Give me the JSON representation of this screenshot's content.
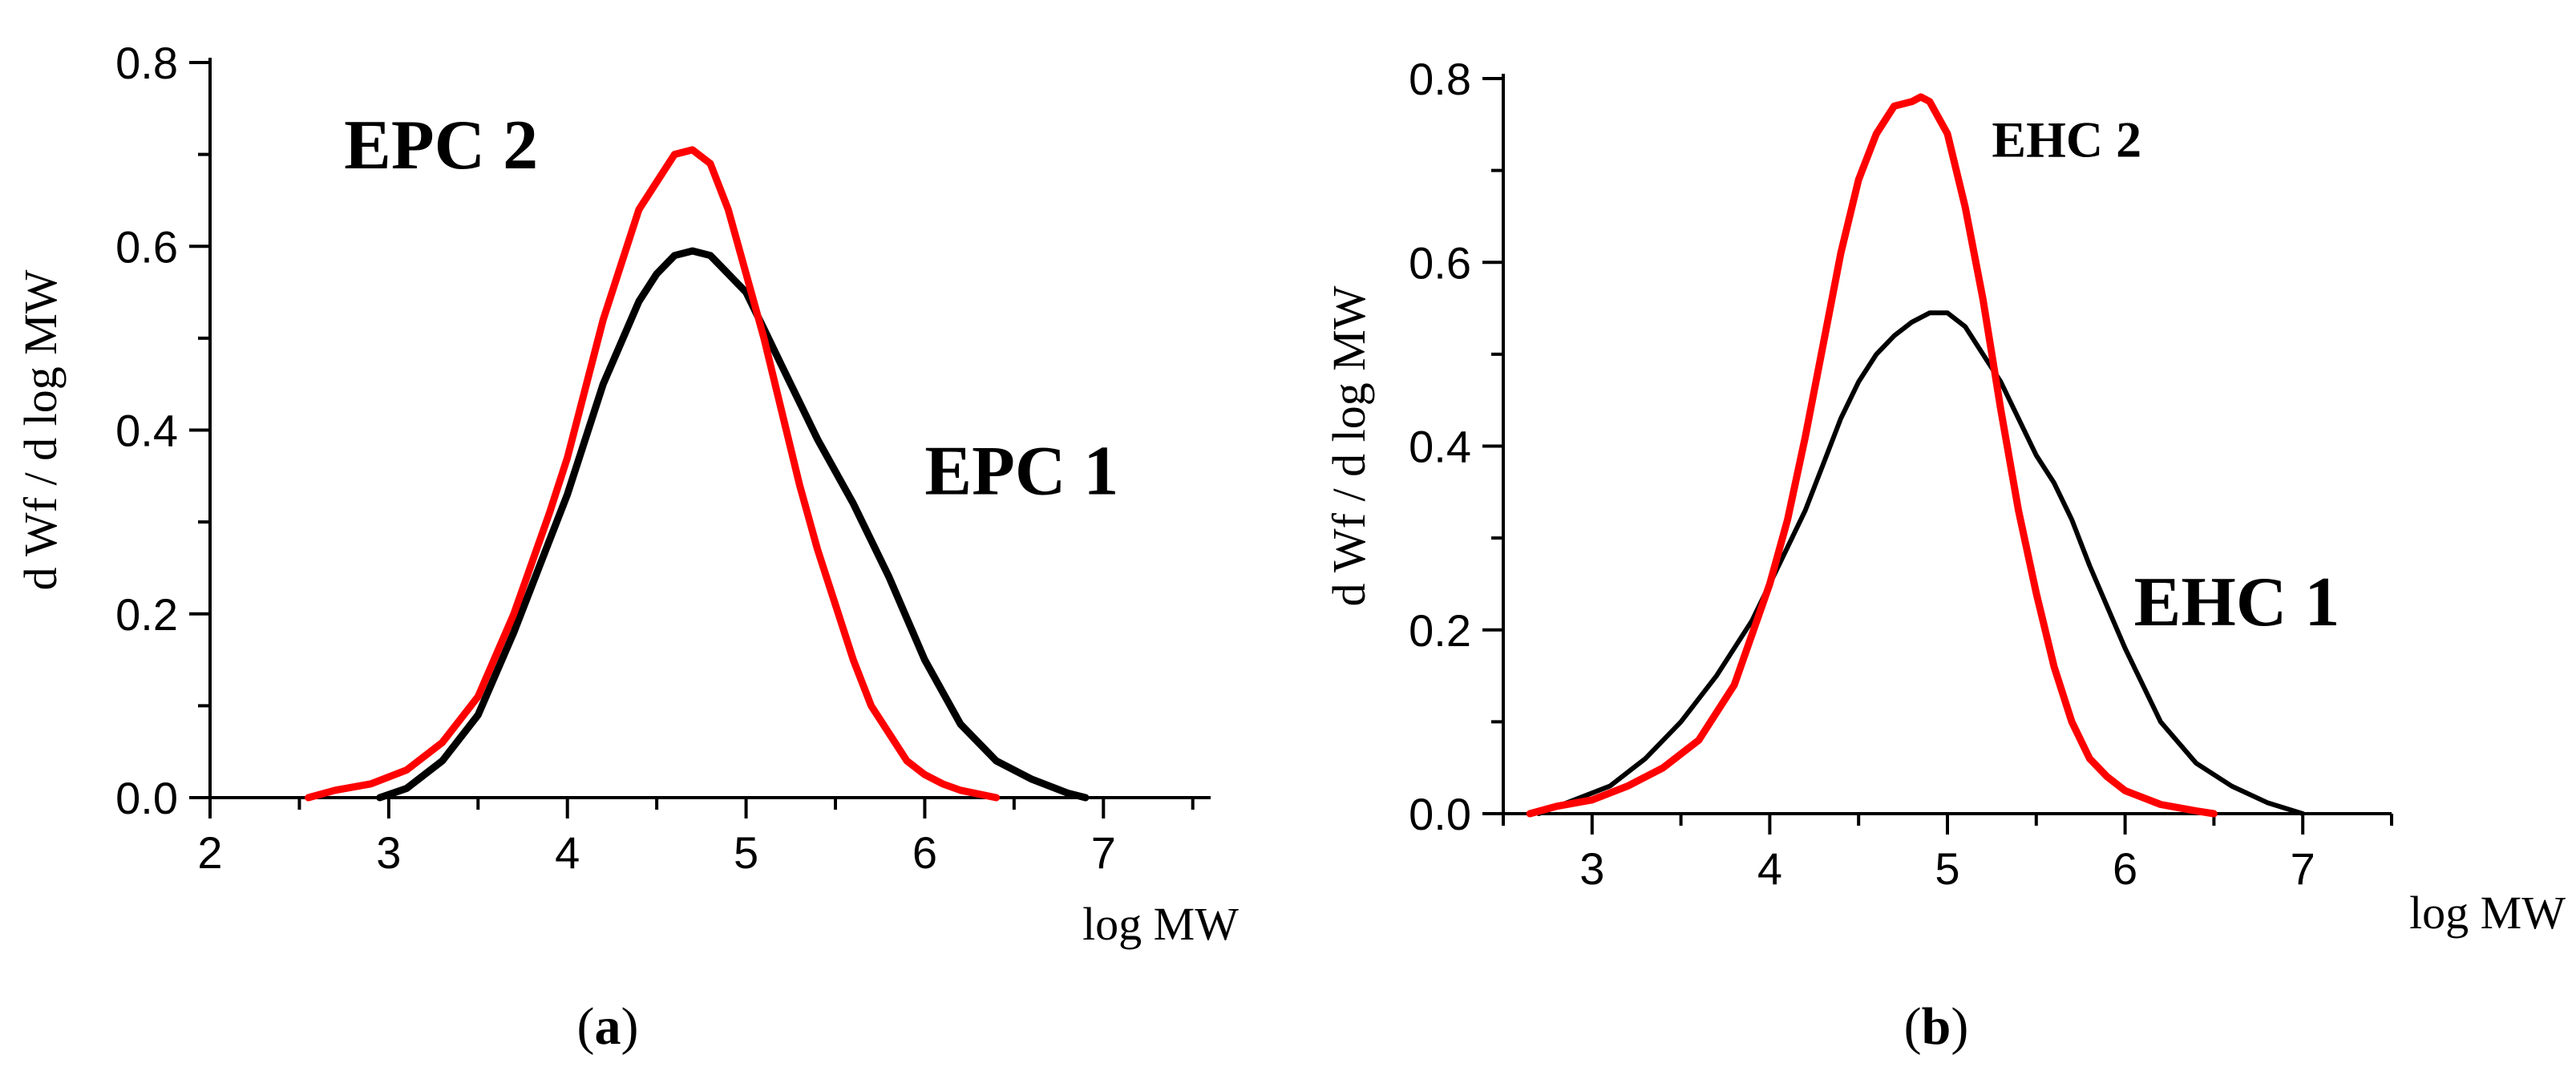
{
  "chart_data": [
    {
      "id": "a",
      "type": "line",
      "caption_open": "(",
      "caption_letter": "a",
      "caption_close": ")",
      "title": "",
      "xlabel": "log MW",
      "ylabel": "d Wf / d log MW",
      "xlim": [
        2,
        7.6
      ],
      "ylim": [
        0,
        0.8
      ],
      "xticks": [
        2,
        3,
        4,
        5,
        6,
        7
      ],
      "yticks": [
        0.0,
        0.2,
        0.4,
        0.6,
        0.8
      ],
      "grid": false,
      "series": [
        {
          "name": "EPC 1",
          "color": "#000000",
          "x": [
            2.95,
            3.1,
            3.3,
            3.5,
            3.7,
            3.9,
            4.0,
            4.2,
            4.4,
            4.5,
            4.6,
            4.7,
            4.8,
            4.9,
            5.0,
            5.1,
            5.2,
            5.3,
            5.4,
            5.6,
            5.8,
            6.0,
            6.2,
            6.4,
            6.6,
            6.8,
            6.9
          ],
          "y": [
            0.0,
            0.01,
            0.04,
            0.09,
            0.18,
            0.28,
            0.33,
            0.45,
            0.54,
            0.57,
            0.59,
            0.595,
            0.59,
            0.57,
            0.55,
            0.51,
            0.47,
            0.43,
            0.39,
            0.32,
            0.24,
            0.15,
            0.08,
            0.04,
            0.02,
            0.005,
            0.0
          ]
        },
        {
          "name": "EPC 2",
          "color": "#ff0000",
          "x": [
            2.55,
            2.7,
            2.9,
            3.1,
            3.3,
            3.5,
            3.7,
            3.9,
            4.0,
            4.2,
            4.4,
            4.5,
            4.6,
            4.7,
            4.8,
            4.9,
            5.0,
            5.1,
            5.2,
            5.3,
            5.4,
            5.5,
            5.6,
            5.7,
            5.8,
            5.9,
            6.0,
            6.1,
            6.2,
            6.4
          ],
          "y": [
            0.0,
            0.008,
            0.015,
            0.03,
            0.06,
            0.11,
            0.2,
            0.31,
            0.37,
            0.52,
            0.64,
            0.67,
            0.7,
            0.705,
            0.69,
            0.64,
            0.57,
            0.5,
            0.42,
            0.34,
            0.27,
            0.21,
            0.15,
            0.1,
            0.07,
            0.04,
            0.025,
            0.015,
            0.008,
            0.0
          ]
        }
      ],
      "annotations": [
        {
          "text": "EPC 2",
          "series": "EPC 2",
          "x": 2.75,
          "y": 0.685,
          "size": "large"
        },
        {
          "text": "EPC 1",
          "series": "EPC 1",
          "x": 6.0,
          "y": 0.33,
          "size": "large"
        }
      ]
    },
    {
      "id": "b",
      "type": "line",
      "caption_open": "(",
      "caption_letter": "b",
      "caption_close": ")",
      "title": "",
      "xlabel": "log MW",
      "ylabel": "d Wf / d log MW",
      "xlim": [
        2.5,
        7.5
      ],
      "ylim": [
        0,
        0.8
      ],
      "xticks": [
        3,
        4,
        5,
        6,
        7
      ],
      "yticks": [
        0.0,
        0.2,
        0.4,
        0.6,
        0.8
      ],
      "grid": false,
      "series": [
        {
          "name": "EHC 1",
          "color": "#000000",
          "x": [
            2.7,
            2.9,
            3.1,
            3.3,
            3.5,
            3.7,
            3.9,
            4.0,
            4.1,
            4.2,
            4.3,
            4.4,
            4.5,
            4.6,
            4.7,
            4.8,
            4.9,
            5.0,
            5.1,
            5.2,
            5.3,
            5.4,
            5.5,
            5.6,
            5.7,
            5.8,
            6.0,
            6.2,
            6.4,
            6.6,
            6.8,
            7.0
          ],
          "y": [
            0.0,
            0.015,
            0.03,
            0.06,
            0.1,
            0.15,
            0.21,
            0.25,
            0.29,
            0.33,
            0.38,
            0.43,
            0.47,
            0.5,
            0.52,
            0.535,
            0.545,
            0.545,
            0.53,
            0.5,
            0.47,
            0.43,
            0.39,
            0.36,
            0.32,
            0.27,
            0.18,
            0.1,
            0.055,
            0.03,
            0.012,
            0.0
          ]
        },
        {
          "name": "EHC 2",
          "color": "#ff0000",
          "x": [
            2.65,
            2.8,
            3.0,
            3.2,
            3.4,
            3.6,
            3.8,
            4.0,
            4.1,
            4.2,
            4.3,
            4.4,
            4.5,
            4.6,
            4.7,
            4.8,
            4.85,
            4.9,
            5.0,
            5.1,
            5.2,
            5.3,
            5.4,
            5.5,
            5.6,
            5.7,
            5.8,
            5.9,
            6.0,
            6.2,
            6.4,
            6.5
          ],
          "y": [
            0.0,
            0.008,
            0.015,
            0.03,
            0.05,
            0.08,
            0.14,
            0.25,
            0.32,
            0.41,
            0.51,
            0.61,
            0.69,
            0.74,
            0.77,
            0.775,
            0.78,
            0.775,
            0.74,
            0.66,
            0.56,
            0.44,
            0.33,
            0.24,
            0.16,
            0.1,
            0.06,
            0.04,
            0.025,
            0.01,
            0.003,
            0.0
          ]
        }
      ],
      "annotations": [
        {
          "text": "EHC 2",
          "series": "EHC 2",
          "x": 5.25,
          "y": 0.715,
          "size": "small"
        },
        {
          "text": "EHC 1",
          "series": "EHC 1",
          "x": 6.05,
          "y": 0.205,
          "size": "large"
        }
      ]
    }
  ]
}
